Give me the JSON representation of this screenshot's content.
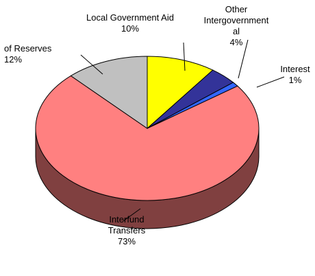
{
  "chart_data": {
    "type": "pie",
    "categories": [
      "Local Government Aid",
      "Other Intergovernmental",
      "Interest",
      "Interfund Transfers",
      "of Reserves"
    ],
    "values": [
      10,
      4,
      1,
      73,
      12
    ],
    "value_labels": [
      "10%",
      "4%",
      "1%",
      "73%",
      "12%"
    ],
    "colors": [
      "#ffff00",
      "#333399",
      "#3366ff",
      "#ff8080",
      "#c0c0c0"
    ]
  }
}
